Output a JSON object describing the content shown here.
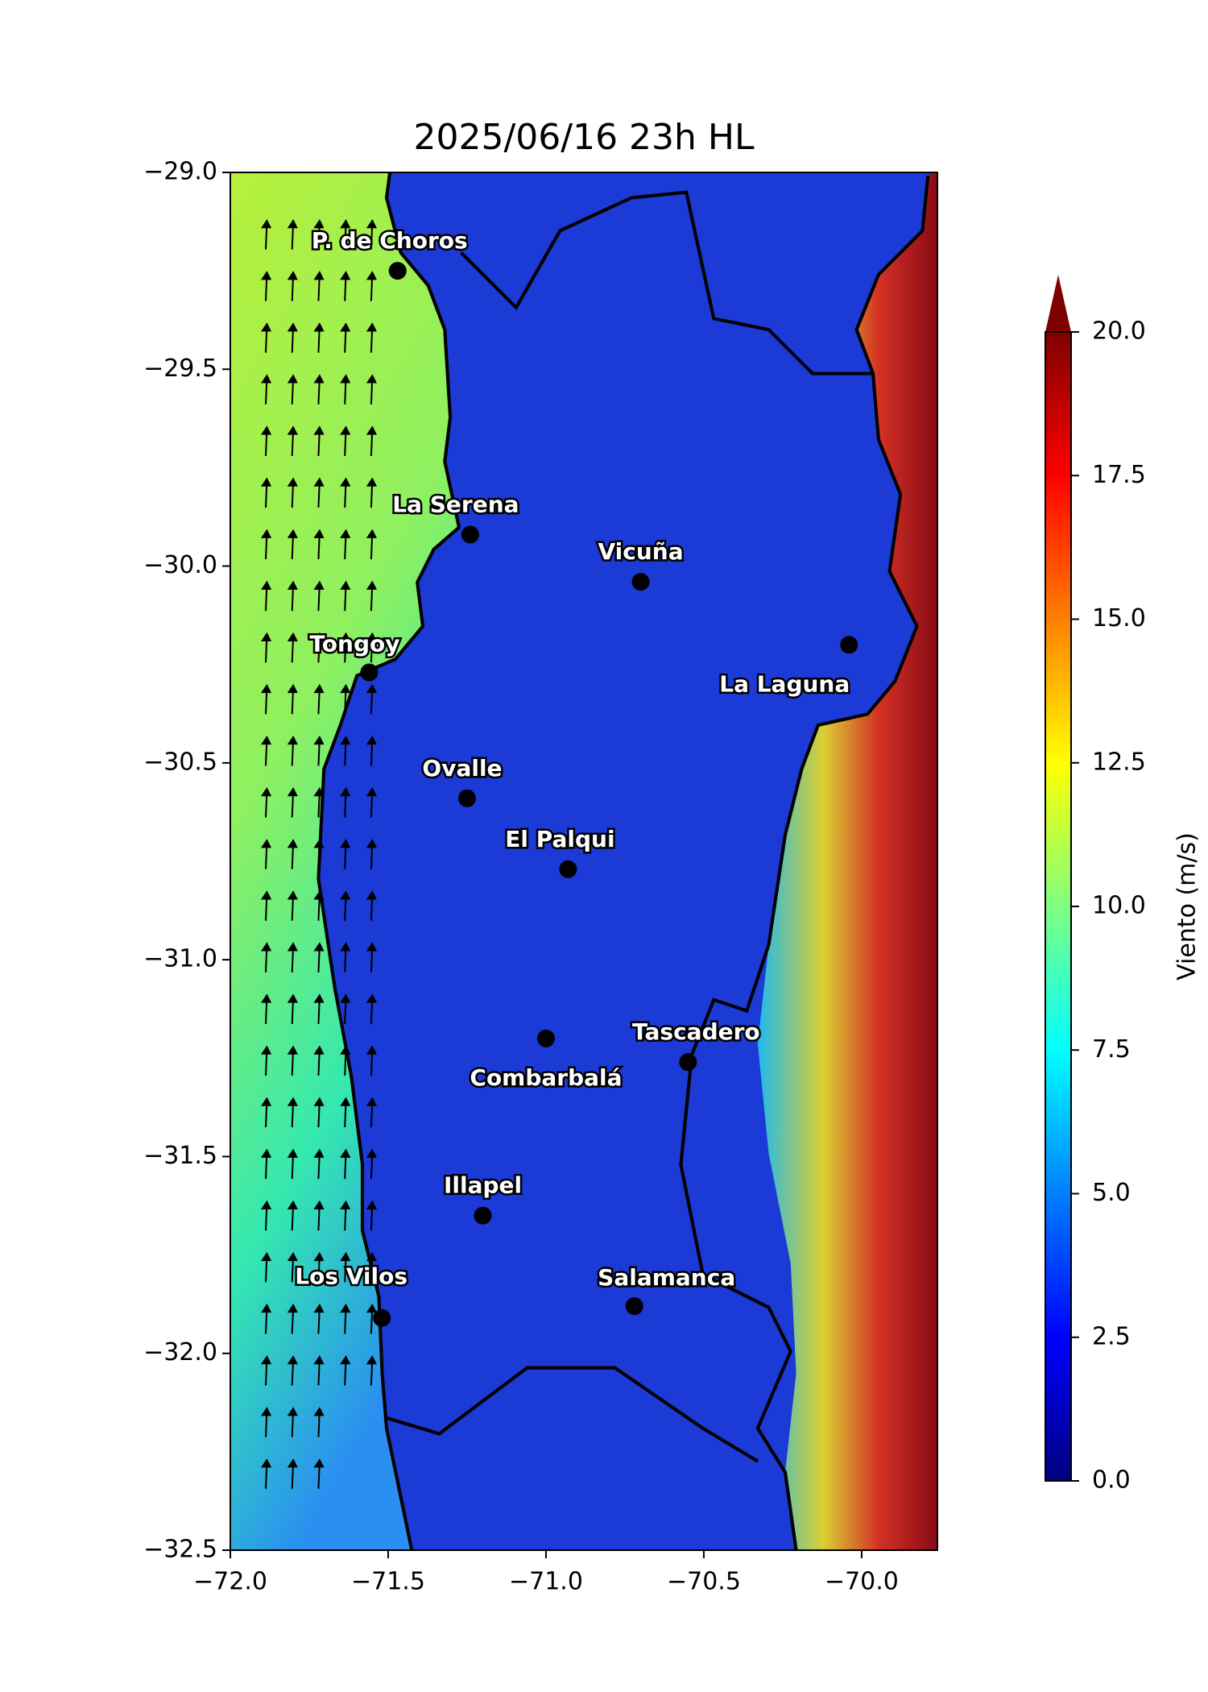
{
  "chart_data": {
    "type": "map",
    "title": "2025/06/16 23h HL",
    "xlim": [
      -72.0,
      -69.76
    ],
    "ylim": [
      -32.5,
      -29.0
    ],
    "xticks": [
      {
        "value": -72.0,
        "label": "−72.0"
      },
      {
        "value": -71.5,
        "label": "−71.5"
      },
      {
        "value": -71.0,
        "label": "−71.0"
      },
      {
        "value": -70.5,
        "label": "−70.5"
      },
      {
        "value": -70.0,
        "label": "−70.0"
      }
    ],
    "yticks": [
      {
        "value": -29.0,
        "label": "−29.0"
      },
      {
        "value": -29.5,
        "label": "−29.5"
      },
      {
        "value": -30.0,
        "label": "−30.0"
      },
      {
        "value": -30.5,
        "label": "−30.5"
      },
      {
        "value": -31.0,
        "label": "−31.0"
      },
      {
        "value": -31.5,
        "label": "−31.5"
      },
      {
        "value": -32.0,
        "label": "−32.0"
      },
      {
        "value": -32.5,
        "label": "−32.5"
      }
    ],
    "cities": [
      {
        "name": "P. de Choros",
        "lon": -71.47,
        "lat": -29.25
      },
      {
        "name": "La Serena",
        "lon": -71.24,
        "lat": -29.92
      },
      {
        "name": "Vicuña",
        "lon": -70.7,
        "lat": -30.04
      },
      {
        "name": "Tongoy",
        "lon": -71.56,
        "lat": -30.27
      },
      {
        "name": "La Laguna",
        "lon": -70.04,
        "lat": -30.2
      },
      {
        "name": "Ovalle",
        "lon": -71.25,
        "lat": -30.59
      },
      {
        "name": "El Palqui",
        "lon": -70.93,
        "lat": -30.77
      },
      {
        "name": "Combarbalá",
        "lon": -71.0,
        "lat": -31.2
      },
      {
        "name": "Tascadero",
        "lon": -70.55,
        "lat": -31.26
      },
      {
        "name": "Illapel",
        "lon": -71.2,
        "lat": -31.65
      },
      {
        "name": "Los Vilos",
        "lon": -71.52,
        "lat": -31.91
      },
      {
        "name": "Salamanca",
        "lon": -70.72,
        "lat": -31.88
      }
    ],
    "colorbar": {
      "label": "Viento (m/s)",
      "lim": [
        0,
        20
      ],
      "ticks": [
        {
          "value": 0,
          "label": "0.0"
        },
        {
          "value": 2.5,
          "label": "2.5"
        },
        {
          "value": 5,
          "label": "5.0"
        },
        {
          "value": 7.5,
          "label": "7.5"
        },
        {
          "value": 10,
          "label": "10.0"
        },
        {
          "value": 12.5,
          "label": "12.5"
        },
        {
          "value": 15,
          "label": "15.0"
        },
        {
          "value": 17.5,
          "label": "17.5"
        },
        {
          "value": 20,
          "label": "20.0"
        }
      ]
    }
  }
}
